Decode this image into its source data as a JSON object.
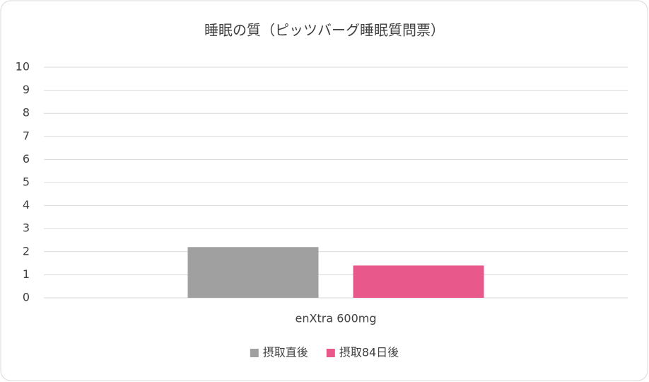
{
  "chart_data": {
    "type": "bar",
    "title": "睡眠の質（ピッツバーグ睡眠質問票）",
    "categories": [
      "enXtra 600mg"
    ],
    "series": [
      {
        "name": "摂取直後",
        "color": "#a0a0a0",
        "values": [
          2.2
        ]
      },
      {
        "name": "摂取84日後",
        "color": "#e8588a",
        "values": [
          1.4
        ]
      }
    ],
    "ylim": [
      0,
      10
    ],
    "yticks": [
      0,
      1,
      2,
      3,
      4,
      5,
      6,
      7,
      8,
      9,
      10
    ],
    "grid": true,
    "legend": "bottom"
  }
}
